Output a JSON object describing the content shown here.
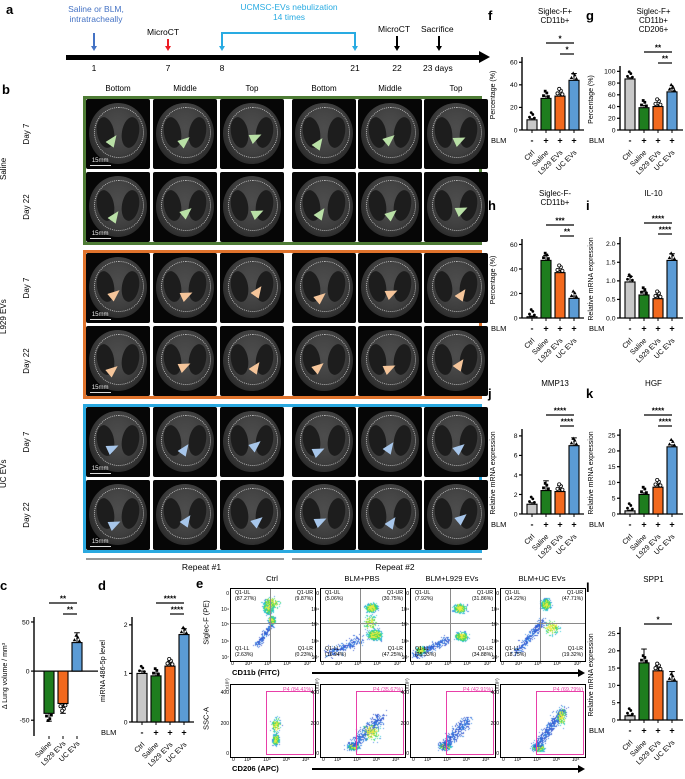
{
  "colors": {
    "bar_gray": "#c8c8c8",
    "bar_green": "#1e7d1e",
    "bar_orange": "#f2691e",
    "bar_blue": "#5b9bd5",
    "saline_border": "#4e7c35",
    "l929_border": "#e0732c",
    "uc_border": "#2aa9e0",
    "arrow_saline": "#b9e0a6",
    "arrow_l929": "#f5c59a",
    "arrow_uc": "#a7c6ea",
    "timeline_blue": "#4472c4",
    "timeline_red": "#ed1c24",
    "timeline_cyan": "#29abe2",
    "gate_magenta": "#e83fa8"
  },
  "panel_a": {
    "label": "a",
    "treatment": "Saline or BLM,\nintratracheally",
    "microct1": "MicroCT",
    "nebulization": "UCMSC-EVs nebulization\n14 times",
    "microct2": "MicroCT",
    "sacrifice": "Sacrifice",
    "ticks": [
      "1",
      "7",
      "8",
      "21",
      "22",
      "23 days"
    ]
  },
  "panel_b": {
    "label": "b",
    "columns": [
      "Bottom",
      "Middle",
      "Top",
      "Bottom",
      "Middle",
      "Top"
    ],
    "groups": [
      {
        "name": "Saline",
        "rows": [
          "Day 7",
          "Day 22"
        ]
      },
      {
        "name": "L929 EVs",
        "rows": [
          "Day 7",
          "Day 22"
        ]
      },
      {
        "name": "UC EVs",
        "rows": [
          "Day 7",
          "Day 22"
        ]
      }
    ],
    "repeats": [
      "Repeat #1",
      "Repeat #2"
    ],
    "scale_label": "15mm"
  },
  "panel_e": {
    "label": "e",
    "col_titles": [
      "Ctrl",
      "BLM+PBS",
      "BLM+L929 EVs",
      "BLM+UC EVs"
    ],
    "top": {
      "ylabel": "Siglec-F (PE)",
      "xlabel": "CD11b (FITC)",
      "xticks": [
        "0",
        "10⁴",
        "10⁵",
        "10⁶",
        "10⁷"
      ],
      "yticks": [
        "0",
        "10⁴",
        "10⁵",
        "10⁶",
        "10⁷"
      ],
      "plots": [
        {
          "UL": "Q1-UL",
          "ULp": "(87.27%)",
          "UR": "Q1-UR",
          "URp": "(9.87%)",
          "LL": "Q1-LL",
          "LLp": "(2.63%)",
          "LR": "Q1-LR",
          "LRp": "(0.23%)"
        },
        {
          "UL": "Q1-UL",
          "ULp": "(5.06%)",
          "UR": "Q1-UR",
          "URp": "(30.75%)",
          "LL": "Q1-LL",
          "LLp": "(16.94%)",
          "LR": "Q1-LR",
          "LRp": "(47.25%)"
        },
        {
          "UL": "Q1-UL",
          "ULp": "(7.92%)",
          "UR": "Q1-UR",
          "URp": "(31.86%)",
          "LL": "Q1-LL",
          "LLp": "(25.33%)",
          "LR": "Q1-LR",
          "LRp": "(34.88%)"
        },
        {
          "UL": "Q1-UL",
          "ULp": "(14.22%)",
          "UR": "Q1-UR",
          "URp": "(47.71%)",
          "LL": "Q1-LL",
          "LLp": "(18.75%)",
          "LR": "Q1-LR",
          "LRp": "(19.32%)"
        }
      ]
    },
    "bottom": {
      "ylabel": "SSC-A",
      "xlabel": "CD206 (APC)",
      "y_multiplier": "(x10⁵)",
      "xticks": [
        "0",
        "10³",
        "10⁴",
        "10⁵",
        "10⁶"
      ],
      "yticks": [
        "0",
        "200",
        "400"
      ],
      "plots": [
        {
          "gate": "P4 (84.41%)"
        },
        {
          "gate": "P4 (35.67%)"
        },
        {
          "gate": "P4 (42.91%)"
        },
        {
          "gate": "P4 (69.79%)"
        }
      ]
    }
  },
  "chart_data": [
    {
      "id": "c",
      "type": "bar",
      "title": "",
      "ylabel": "Δ Lung volume / mm³",
      "categories": [
        "Saline",
        "L929 EVs",
        "UC EVs"
      ],
      "values": [
        -43,
        -33,
        29
      ],
      "errors": [
        8,
        10,
        10
      ],
      "colors": [
        "green",
        "orange",
        "blue"
      ],
      "dot_shapes": [
        "square",
        "open",
        "triangle"
      ],
      "ylim": [
        -62,
        52
      ],
      "yticks": [
        -50,
        0,
        50
      ],
      "ytick_labels": [
        "-50",
        "0",
        "50"
      ],
      "sig": [
        {
          "a": 0,
          "b": 2,
          "label": "**"
        },
        {
          "a": 1,
          "b": 2,
          "label": "**"
        }
      ],
      "blm": null
    },
    {
      "id": "d",
      "type": "bar",
      "title": "",
      "ylabel": "miRNA 486-5p level",
      "categories": [
        "Ctrl",
        "Saline",
        "L929 EVs",
        "UC EVs"
      ],
      "values": [
        1.0,
        0.95,
        1.15,
        1.8
      ],
      "errors": [
        0.05,
        0.06,
        0.1,
        0.12
      ],
      "colors": [
        "gray",
        "green",
        "orange",
        "blue"
      ],
      "dot_shapes": [
        "circle",
        "square",
        "open",
        "triangle"
      ],
      "ylim": [
        0,
        2.1
      ],
      "yticks": [
        0,
        1,
        2
      ],
      "ytick_labels": [
        "0",
        "1",
        "2"
      ],
      "sig": [
        {
          "a": 1,
          "b": 3,
          "label": "****"
        },
        {
          "a": 2,
          "b": 3,
          "label": "****"
        }
      ],
      "blm": [
        "-",
        "+",
        "+",
        "+"
      ]
    },
    {
      "id": "f",
      "type": "bar",
      "title": "Siglec-F+\nCD11b+",
      "ylabel": "Percentage (%)",
      "categories": [
        "Ctrl",
        "Saline",
        "L929 EVs",
        "UC EVs"
      ],
      "values": [
        9,
        28,
        30,
        44
      ],
      "errors": [
        1,
        2,
        2,
        6
      ],
      "colors": [
        "gray",
        "green",
        "orange",
        "blue"
      ],
      "dot_shapes": [
        "circle",
        "square",
        "open",
        "triangle"
      ],
      "ylim": [
        0,
        62
      ],
      "yticks": [
        0,
        20,
        40,
        60
      ],
      "ytick_labels": [
        "0",
        "20",
        "40",
        "60"
      ],
      "sig": [
        {
          "a": 1,
          "b": 3,
          "label": "*"
        },
        {
          "a": 2,
          "b": 3,
          "label": "*"
        }
      ],
      "blm": [
        "-",
        "+",
        "+",
        "+"
      ]
    },
    {
      "id": "g",
      "type": "bar",
      "title": "Siglec-F+\nCD11b+\nCD206+",
      "ylabel": "Percentage (%)",
      "categories": [
        "Ctrl",
        "Saline",
        "L929 EVs",
        "UC EVs"
      ],
      "values": [
        87,
        38,
        40,
        65
      ],
      "errors": [
        2,
        4,
        3,
        6
      ],
      "colors": [
        "gray",
        "green",
        "orange",
        "blue"
      ],
      "dot_shapes": [
        "circle",
        "square",
        "open",
        "triangle"
      ],
      "ylim": [
        0,
        104
      ],
      "yticks": [
        0,
        20,
        40,
        60,
        80,
        100
      ],
      "ytick_labels": [
        "0",
        "20",
        "40",
        "60",
        "80",
        "100"
      ],
      "sig": [
        {
          "a": 1,
          "b": 3,
          "label": "**"
        },
        {
          "a": 2,
          "b": 3,
          "label": "**"
        }
      ],
      "blm": [
        "-",
        "+",
        "+",
        "+"
      ]
    },
    {
      "id": "h",
      "type": "bar",
      "title": "Siglec-F-\nCD11b+",
      "ylabel": "Percentage (%)",
      "categories": [
        "Ctrl",
        "Saline",
        "L929 EVs",
        "UC EVs"
      ],
      "values": [
        1,
        47,
        37,
        16
      ],
      "errors": [
        0.6,
        4,
        2,
        2
      ],
      "colors": [
        "gray",
        "green",
        "orange",
        "blue"
      ],
      "dot_shapes": [
        "circle",
        "square",
        "open",
        "triangle"
      ],
      "ylim": [
        0,
        62
      ],
      "yticks": [
        0,
        20,
        40,
        60
      ],
      "ytick_labels": [
        "0",
        "20",
        "40",
        "60"
      ],
      "sig": [
        {
          "a": 1,
          "b": 3,
          "label": "***"
        },
        {
          "a": 2,
          "b": 3,
          "label": "**"
        }
      ],
      "blm": [
        "-",
        "+",
        "+",
        "+"
      ]
    },
    {
      "id": "i",
      "type": "bar",
      "title": "IL-10",
      "ylabel": "Relative  mRNA expression",
      "categories": [
        "Ctrl",
        "Saline",
        "L929 EVs",
        "UC EVs"
      ],
      "values": [
        0.97,
        0.62,
        0.52,
        1.55
      ],
      "errors": [
        0.15,
        0.1,
        0.12,
        0.18
      ],
      "colors": [
        "gray",
        "green",
        "orange",
        "blue"
      ],
      "dot_shapes": [
        "circle",
        "square",
        "open",
        "triangle"
      ],
      "ylim": [
        0,
        2.1
      ],
      "yticks": [
        0,
        0.5,
        1,
        1.5,
        2
      ],
      "ytick_labels": [
        "0.0",
        "0.5",
        "1.0",
        "1.5",
        "2.0"
      ],
      "sig": [
        {
          "a": 1,
          "b": 3,
          "label": "****"
        },
        {
          "a": 2,
          "b": 3,
          "label": "****"
        }
      ],
      "blm": [
        "-",
        "+",
        "+",
        "+"
      ]
    },
    {
      "id": "j",
      "type": "bar",
      "title": "MMP13",
      "ylabel": "Relative  mRNA expression",
      "categories": [
        "Ctrl",
        "Saline",
        "L929 EVs",
        "UC EVs"
      ],
      "values": [
        1.0,
        2.4,
        2.3,
        7.0
      ],
      "errors": [
        0.15,
        1.0,
        0.6,
        0.8
      ],
      "colors": [
        "gray",
        "green",
        "orange",
        "blue"
      ],
      "dot_shapes": [
        "circle",
        "square",
        "open",
        "triangle"
      ],
      "ylim": [
        0,
        8.4
      ],
      "yticks": [
        0,
        2,
        4,
        6,
        8
      ],
      "ytick_labels": [
        "0",
        "2",
        "4",
        "6",
        "8"
      ],
      "sig": [
        {
          "a": 1,
          "b": 3,
          "label": "****"
        },
        {
          "a": 2,
          "b": 3,
          "label": "****"
        }
      ],
      "blm": [
        "-",
        "+",
        "+",
        "+"
      ]
    },
    {
      "id": "k",
      "type": "bar",
      "title": "HGF",
      "ylabel": "Relative  mRNA expression",
      "categories": [
        "Ctrl",
        "Saline",
        "L929 EVs",
        "UC EVs"
      ],
      "values": [
        1.0,
        6.2,
        8.5,
        21.3
      ],
      "errors": [
        0.2,
        0.5,
        0.9,
        0.6
      ],
      "colors": [
        "gray",
        "green",
        "orange",
        "blue"
      ],
      "dot_shapes": [
        "circle",
        "square",
        "open",
        "triangle"
      ],
      "ylim": [
        0,
        26
      ],
      "yticks": [
        0,
        5,
        10,
        15,
        20,
        25
      ],
      "ytick_labels": [
        "0",
        "5",
        "10",
        "15",
        "20",
        "25"
      ],
      "sig": [
        {
          "a": 1,
          "b": 3,
          "label": "****"
        },
        {
          "a": 2,
          "b": 3,
          "label": "****"
        }
      ],
      "blm": [
        "-",
        "+",
        "+",
        "+"
      ]
    },
    {
      "id": "l",
      "type": "bar",
      "title": "SPP1",
      "ylabel": "Relative  mRNA expression",
      "categories": [
        "Ctrl",
        "Saline",
        "L929 EVs",
        "UC EVs"
      ],
      "values": [
        1.2,
        16.5,
        14.2,
        11.2
      ],
      "errors": [
        0.2,
        4,
        1.5,
        2.8
      ],
      "colors": [
        "gray",
        "green",
        "orange",
        "blue"
      ],
      "dot_shapes": [
        "circle",
        "square",
        "open",
        "triangle"
      ],
      "ylim": [
        0,
        26
      ],
      "yticks": [
        0,
        5,
        10,
        15,
        20,
        25
      ],
      "ytick_labels": [
        "0",
        "5",
        "10",
        "15",
        "20",
        "25"
      ],
      "sig": [
        {
          "a": 1,
          "b": 3,
          "label": "*"
        }
      ],
      "blm": [
        "-",
        "+",
        "+",
        "+"
      ]
    }
  ],
  "chart_letters": {
    "c": "c",
    "d": "d",
    "f": "f",
    "g": "g",
    "h": "h",
    "i": "i",
    "j": "j",
    "k": "k",
    "l": "l"
  }
}
